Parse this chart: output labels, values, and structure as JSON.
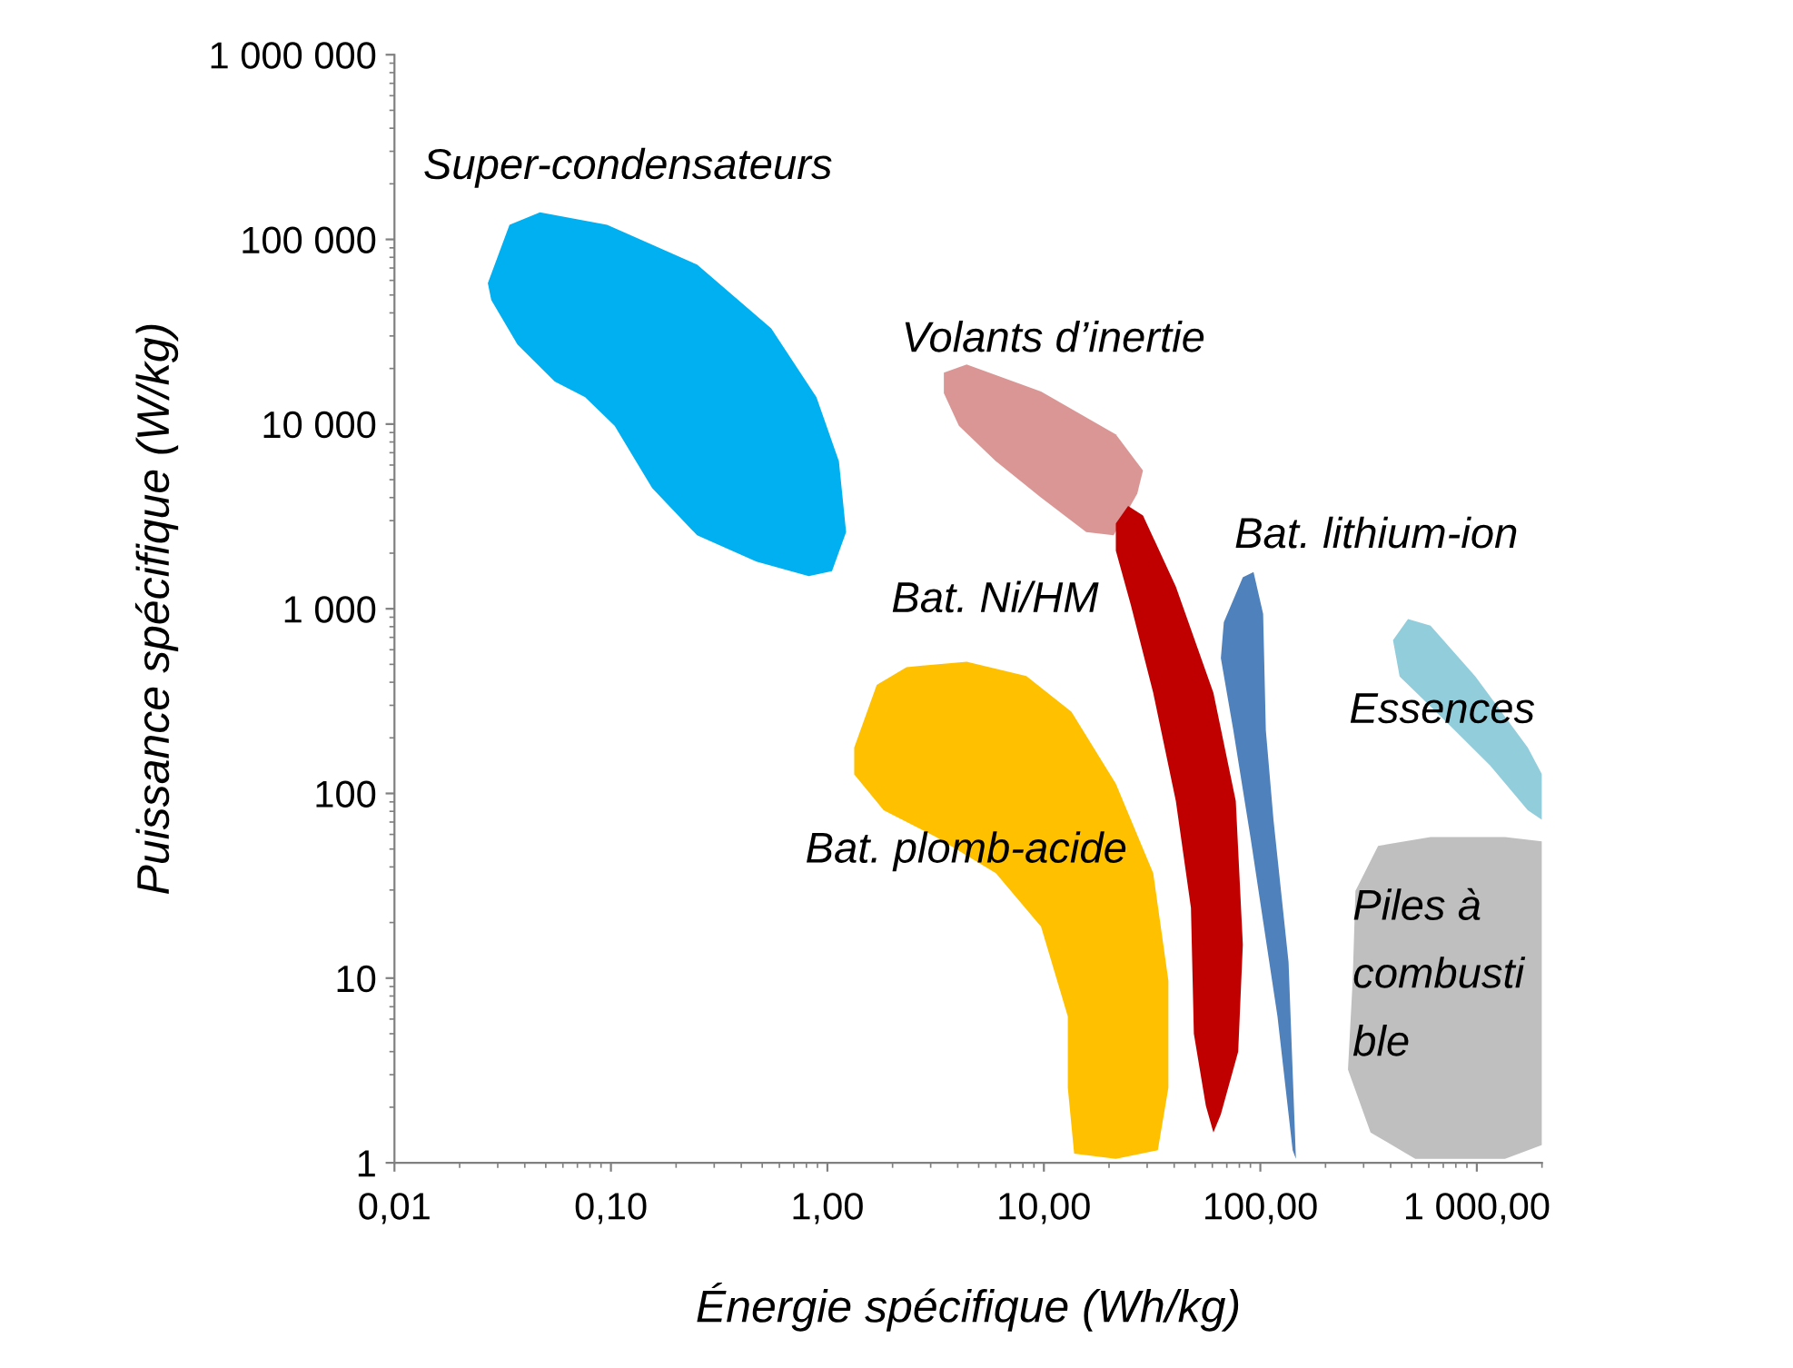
{
  "chart_data": {
    "type": "area",
    "xlabel": "Énergie spécifique (Wh/kg)",
    "ylabel": "Puissance spécifique (W/kg)",
    "log": "xy",
    "grid": false,
    "legend": false,
    "xlim": [
      0.01,
      2000
    ],
    "ylim": [
      1,
      1000000
    ],
    "xticks": [
      {
        "value": 0.01,
        "label": "0,01"
      },
      {
        "value": 0.1,
        "label": "0,10"
      },
      {
        "value": 1,
        "label": "1,00"
      },
      {
        "value": 10,
        "label": "10,00"
      },
      {
        "value": 100,
        "label": "100,00"
      },
      {
        "value": 1000,
        "label": "1 000,00"
      }
    ],
    "yticks": [
      1,
      10,
      100,
      {
        "value": 1000,
        "label": "1 000"
      },
      {
        "value": 10000,
        "label": "10 000"
      },
      {
        "value": 100000,
        "label": "100 000"
      },
      {
        "value": 1000000,
        "label": "1 000 000"
      }
    ],
    "series": [
      {
        "name": "Super-condensateurs",
        "color": "#00b0f0",
        "x": [
          0.027,
          0.034,
          0.047,
          0.096,
          0.25,
          0.55,
          0.89,
          1.13,
          1.22,
          1.05,
          0.82,
          0.47,
          0.25,
          0.155,
          0.104,
          0.076,
          0.055,
          0.037,
          0.028
        ],
        "values": [
          58000,
          120000,
          140000,
          120000,
          73000,
          33000,
          14000,
          6300,
          2600,
          1600,
          1500,
          1800,
          2500,
          4500,
          9800,
          14000,
          17000,
          27000,
          47000
        ]
      },
      {
        "name": "Volants d’inertie",
        "color": "#da9694",
        "x": [
          3.45,
          4.4,
          9.7,
          21.5,
          28.7,
          27,
          21,
          15.7,
          9.7,
          6.0,
          4.05,
          3.45
        ],
        "values": [
          19000,
          21000,
          15000,
          8800,
          5600,
          4200,
          2500,
          2600,
          4000,
          6300,
          9800,
          14700
        ]
      },
      {
        "name": "Bat. plomb-acide",
        "color": "#ffc000",
        "x": [
          1.33,
          1.69,
          2.32,
          4.4,
          8.3,
          13.4,
          21.5,
          32,
          37.6,
          37.6,
          33.6,
          21.5,
          13.8,
          12.9,
          12.9,
          9.7,
          6.0,
          3.18,
          1.82,
          1.33
        ],
        "values": [
          177,
          387,
          483,
          517,
          432,
          277,
          113,
          37,
          9.7,
          2.55,
          1.17,
          1.05,
          1.12,
          2.55,
          6.2,
          19,
          37,
          58,
          81,
          127
        ]
      },
      {
        "name": "Bat. Ni/HM",
        "color": "#c00000",
        "x": [
          21.5,
          24.5,
          28.7,
          40.7,
          60.7,
          77,
          83,
          79,
          65.7,
          60.7,
          56,
          49.3,
          47.8,
          40.7,
          32,
          25.2,
          21.5
        ],
        "values": [
          2900,
          3600,
          3200,
          1320,
          350,
          91,
          15.2,
          4.0,
          1.83,
          1.46,
          2.04,
          5.0,
          24,
          91,
          350,
          1050,
          2060
        ]
      },
      {
        "name": "Bat. lithium-ion",
        "color": "#4f81bd",
        "x": [
          67.8,
          83,
          93,
          103,
          106,
          115,
          135,
          146,
          141,
          120,
          90,
          75,
          65.7
        ],
        "values": [
          845,
          1480,
          1580,
          940,
          220,
          72,
          12.2,
          1.05,
          1.17,
          6.2,
          58,
          220,
          540
        ]
      },
      {
        "name": "Essences",
        "color": "#92cddc",
        "x": [
          410,
          481,
          611,
          985,
          1720,
          2000,
          2000,
          1720,
          1150,
          716,
          440
        ],
        "values": [
          675,
          880,
          810,
          430,
          177,
          127,
          72,
          81,
          142,
          247,
          430
        ]
      },
      {
        "name": "Piles à\ncombusti\nble",
        "color": "#bfbfbf",
        "x": [
          275,
          350,
          611,
          1350,
          2000,
          2000,
          1350,
          520,
          323,
          254,
          267
        ],
        "values": [
          29.7,
          52,
          58,
          58,
          55,
          1.25,
          1.05,
          1.05,
          1.46,
          3.2,
          9.7
        ]
      }
    ]
  }
}
